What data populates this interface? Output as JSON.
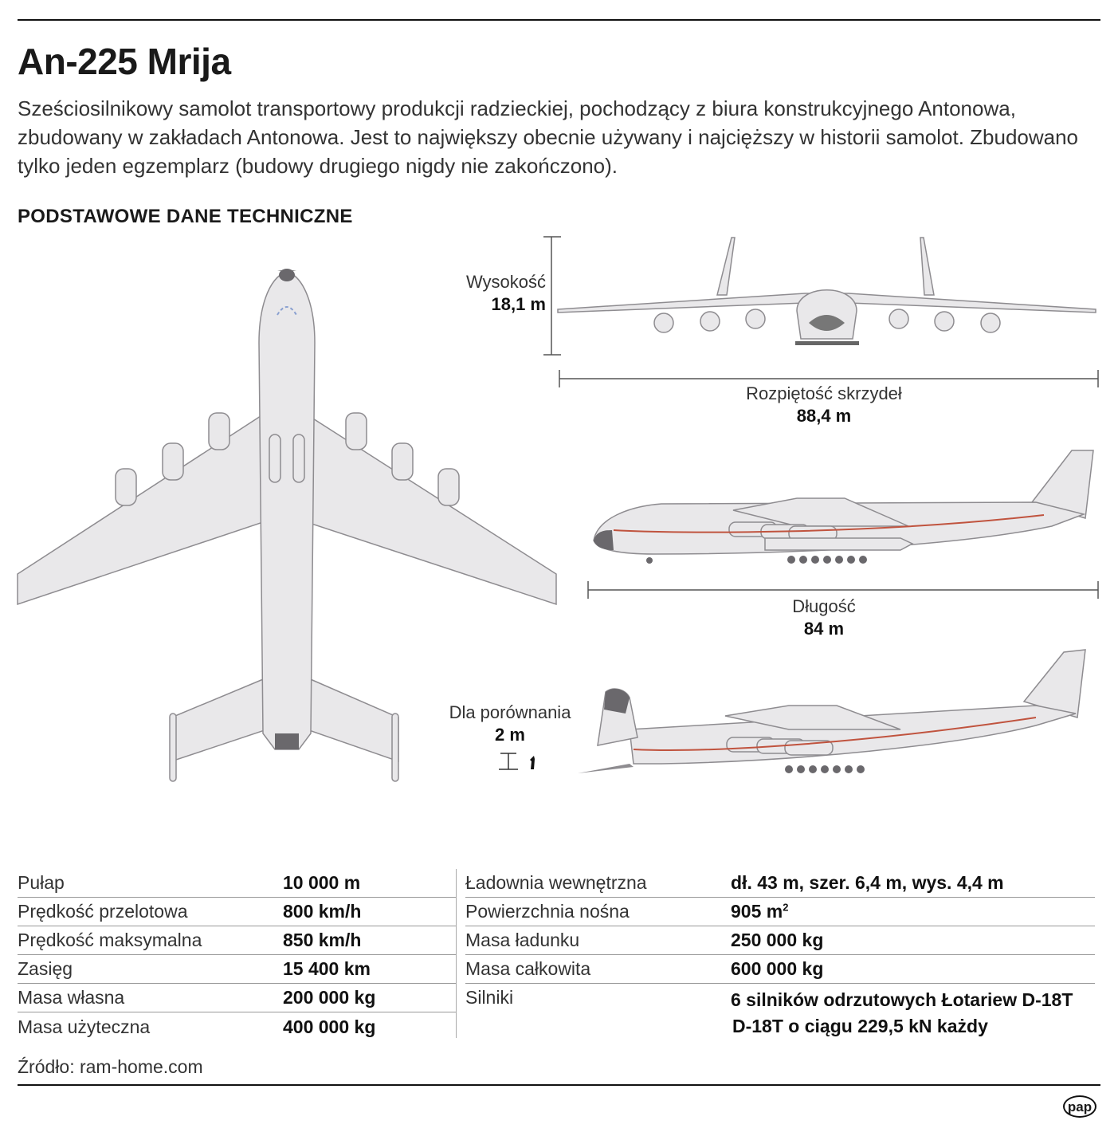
{
  "title": "An-225 Mrija",
  "description": "Sześciosilnikowy samolot transportowy produkcji radzieckiej, pochodzący z biura konstrukcyjnego Antonowa, zbudowany w zakładach Antonowa. Jest to największy obecnie używany i najcięższy w historii samolot. Zbudowano tylko jeden egzemplarz (budowy drugiego nigdy nie zakończono).",
  "section_title": "PODSTAWOWE DANE TECHNICZNE",
  "dimensions": {
    "height": {
      "label": "Wysokość",
      "value": "18,1 m"
    },
    "wingspan": {
      "label": "Rozpiętość skrzydeł",
      "value": "88,4 m"
    },
    "length": {
      "label": "Długość",
      "value": "84 m"
    },
    "comparison": {
      "label": "Dla porównania",
      "value": "2 m"
    }
  },
  "specs_left": [
    {
      "label": "Pułap",
      "value": "10 000 m"
    },
    {
      "label": "Prędkość przelotowa",
      "value": "800 km/h"
    },
    {
      "label": "Prędkość maksymalna",
      "value": "850 km/h"
    },
    {
      "label": "Zasięg",
      "value": "15 400 km"
    },
    {
      "label": "Masa własna",
      "value": "200 000 kg"
    },
    {
      "label": "Masa użyteczna",
      "value": "400 000 kg"
    }
  ],
  "specs_right": [
    {
      "label": "Ładownia wewnętrzna",
      "value": "dł. 43 m, szer. 6,4 m, wys. 4,4 m"
    },
    {
      "label": "Powierzchnia nośna",
      "value": "905 m",
      "sup": "2"
    },
    {
      "label": "Masa ładunku",
      "value": "250 000 kg"
    },
    {
      "label": "Masa całkowita",
      "value": "600 000 kg"
    },
    {
      "label": "Silniki",
      "value": "6 silników odrzutowych Łotariew D-18T",
      "value2": "D-18T o ciągu 229,5 kN każdy"
    }
  ],
  "source": "Źródło: ram-home.com",
  "logo": "pap",
  "colors": {
    "fuselage": "#e9e8ea",
    "stripe": "#c0533e",
    "outline": "#8e8c90"
  }
}
